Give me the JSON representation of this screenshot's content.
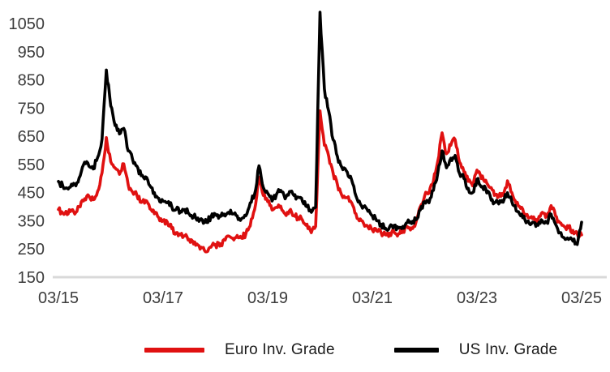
{
  "chart_data": {
    "type": "line",
    "title": "",
    "xlabel": "",
    "ylabel": "",
    "frequency": "monthly",
    "x_start": "03/15",
    "x_end": "03/25",
    "x_tick_labels": [
      "03/15",
      "03/17",
      "03/19",
      "03/21",
      "03/23",
      "03/25"
    ],
    "y_ticks": [
      150,
      250,
      350,
      450,
      550,
      650,
      750,
      850,
      950,
      1050
    ],
    "ylim": [
      150,
      1100
    ],
    "grid": "off",
    "legend_position": "bottom",
    "axis": {
      "tick_label_color": "#3c3c3c",
      "baseline_color": "#d9d9d9"
    },
    "series": [
      {
        "name": "Euro Inv. Grade",
        "color": "#e01111",
        "values": [
          390,
          378,
          372,
          388,
          380,
          400,
          428,
          438,
          425,
          455,
          520,
          645,
          560,
          538,
          515,
          552,
          478,
          452,
          440,
          415,
          422,
          392,
          375,
          362,
          352,
          345,
          322,
          308,
          300,
          296,
          284,
          268,
          264,
          254,
          240,
          256,
          266,
          260,
          284,
          296,
          288,
          298,
          288,
          304,
          332,
          390,
          505,
          440,
          418,
          388,
          398,
          402,
          374,
          386,
          368,
          362,
          352,
          338,
          308,
          330,
          740,
          618,
          578,
          520,
          478,
          440,
          432,
          420,
          378,
          350,
          340,
          328,
          318,
          314,
          308,
          300,
          306,
          310,
          304,
          316,
          330,
          325,
          345,
          400,
          438,
          448,
          490,
          560,
          662,
          588,
          618,
          638,
          558,
          525,
          490,
          474,
          530,
          500,
          494,
          468,
          440,
          436,
          440,
          492,
          450,
          410,
          394,
          374,
          360,
          364,
          354,
          380,
          368,
          404,
          368,
          344,
          330,
          325,
          316,
          304,
          300
        ]
      },
      {
        "name": "US Inv. Grade",
        "color": "#000000",
        "values": [
          490,
          474,
          466,
          480,
          474,
          510,
          558,
          544,
          534,
          575,
          640,
          885,
          758,
          688,
          658,
          678,
          598,
          568,
          544,
          510,
          506,
          474,
          450,
          430,
          420,
          414,
          400,
          390,
          384,
          390,
          374,
          364,
          360,
          354,
          344,
          364,
          374,
          368,
          374,
          380,
          374,
          368,
          358,
          368,
          414,
          445,
          545,
          468,
          448,
          420,
          444,
          458,
          428,
          454,
          440,
          434,
          418,
          400,
          380,
          398,
          1090,
          818,
          738,
          638,
          578,
          540,
          528,
          508,
          450,
          420,
          400,
          384,
          368,
          350,
          338,
          324,
          330,
          334,
          324,
          330,
          344,
          340,
          354,
          388,
          418,
          414,
          458,
          518,
          598,
          538,
          572,
          582,
          518,
          500,
          465,
          450,
          498,
          470,
          464,
          440,
          414,
          410,
          416,
          450,
          418,
          385,
          368,
          354,
          340,
          344,
          334,
          350,
          344,
          374,
          338,
          308,
          290,
          284,
          278,
          266,
          345
        ]
      }
    ]
  }
}
